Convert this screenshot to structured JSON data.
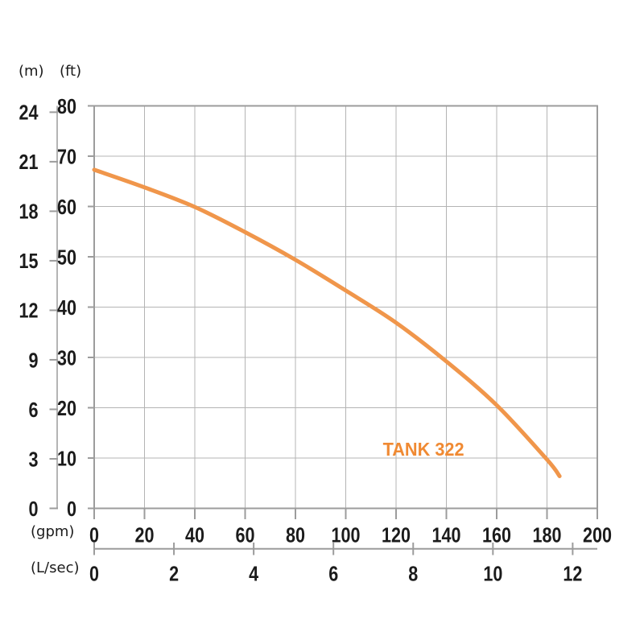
{
  "chart_data": {
    "type": "line",
    "title": "",
    "annotation": {
      "text": "TANK 322",
      "color": "#F08A33",
      "x_gpm": 130.9,
      "y_ft_baseline": 10.5
    },
    "series": [
      {
        "name": "TANK 322",
        "color": "#F0964B",
        "points_gpm_ft": [
          [
            0,
            67.3
          ],
          [
            20,
            63.8
          ],
          [
            40,
            59.9
          ],
          [
            60,
            54.9
          ],
          [
            80,
            49.4
          ],
          [
            100,
            43.3
          ],
          [
            120,
            36.9
          ],
          [
            140,
            29.2
          ],
          [
            160,
            20.5
          ],
          [
            180,
            9.7
          ],
          [
            185,
            6.4
          ]
        ]
      }
    ],
    "axes": {
      "y_ft": {
        "unit": "(ft)",
        "ticks": [
          0,
          10,
          20,
          30,
          40,
          50,
          60,
          70,
          80
        ],
        "range": [
          0,
          80
        ]
      },
      "y_m": {
        "unit": "(m)",
        "ticks": [
          0,
          3,
          6,
          9,
          12,
          15,
          18,
          21,
          24
        ],
        "ft_per_m": 3.28084
      },
      "x_gpm": {
        "unit": "(gpm)",
        "ticks": [
          0,
          20,
          40,
          60,
          80,
          100,
          120,
          140,
          160,
          180,
          200
        ],
        "range": [
          0,
          200
        ]
      },
      "x_lsec": {
        "unit": "(L/sec)",
        "ticks": [
          0,
          2,
          4,
          6,
          8,
          10,
          12
        ],
        "gpm_per_lsec": 15.8503
      }
    },
    "grid": {
      "on": true,
      "color": "#B4B4B4"
    },
    "colors": {
      "axis": "#9C9C9C",
      "text": "#1B1B1B"
    }
  }
}
